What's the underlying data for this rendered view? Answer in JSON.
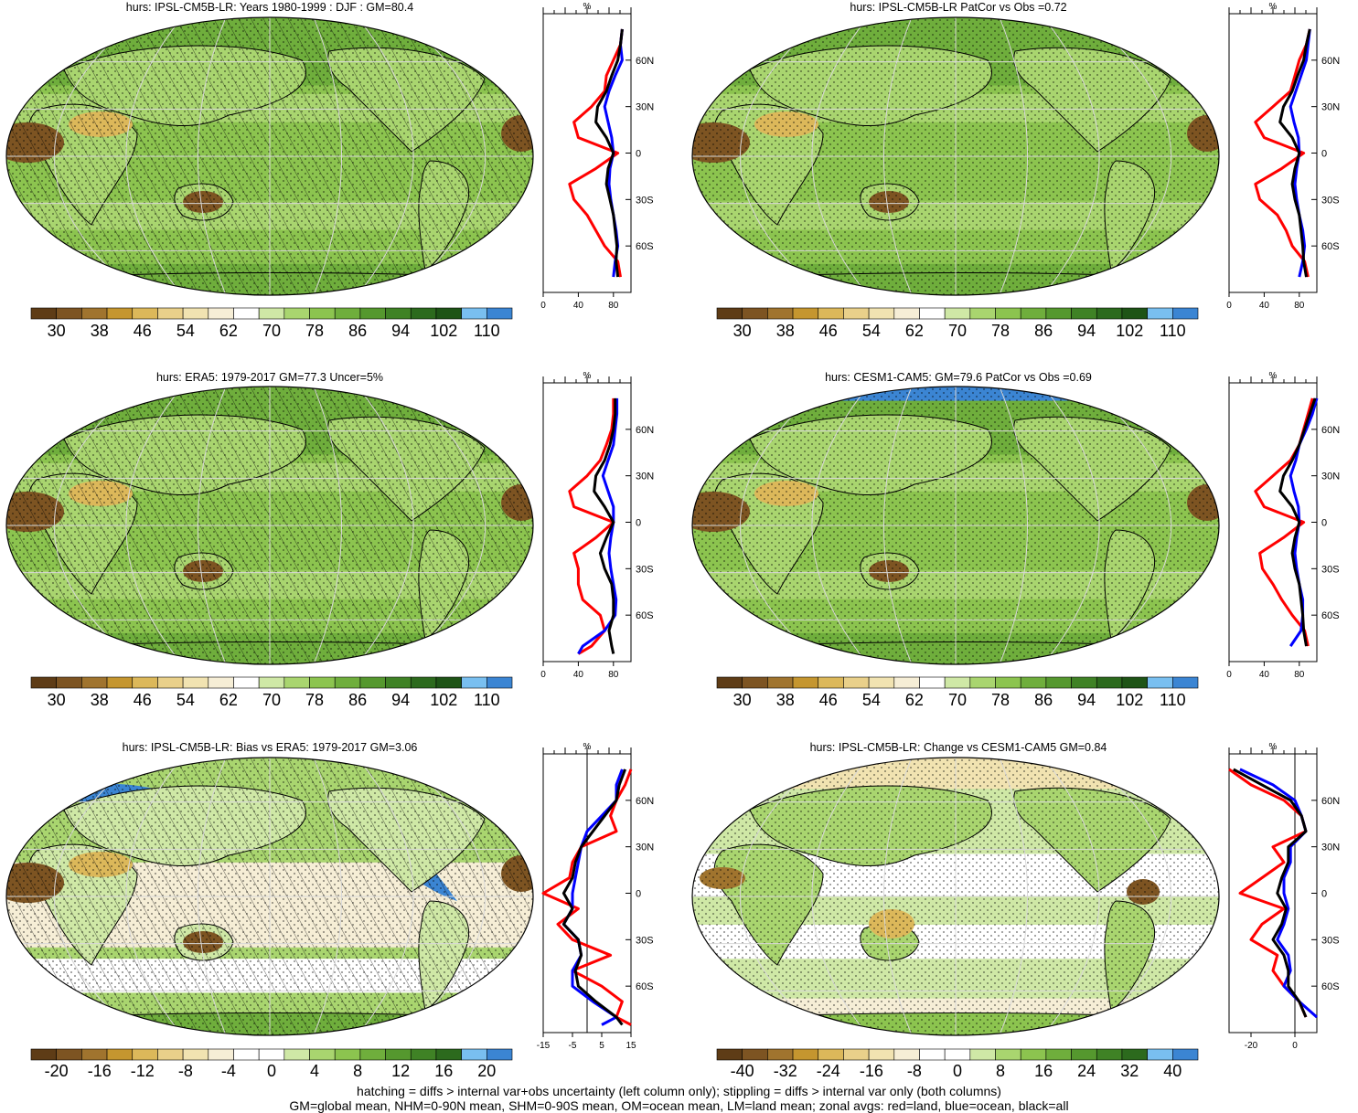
{
  "panels": [
    {
      "id": "p1",
      "title": "hurs: IPSL-CM5B-LR: Years 1980-1999 : DJF : GM=80.4",
      "cbar": "abs",
      "hatch": true,
      "zonal": "abs",
      "pos": "tl"
    },
    {
      "id": "p2",
      "title": "hurs: IPSL-CM5B-LR PatCor vs Obs =0.72",
      "cbar": "abs",
      "hatch": false,
      "zonal": "abs",
      "pos": "tr"
    },
    {
      "id": "p3",
      "title": "hurs: ERA5: 1979-2017 GM=77.3 Uncer=5%",
      "cbar": "abs",
      "hatch": true,
      "zonal": "abs",
      "pos": "ml"
    },
    {
      "id": "p4",
      "title": "hurs: CESM1-CAM5: GM=79.6 PatCor vs Obs =0.69",
      "cbar": "abs",
      "hatch": false,
      "zonal": "abs",
      "pos": "mr"
    },
    {
      "id": "p5",
      "title": "hurs: IPSL-CM5B-LR: Bias vs ERA5: 1979-2017 GM=3.06",
      "cbar": "bias",
      "hatch": true,
      "zonal": "bias",
      "pos": "bl"
    },
    {
      "id": "p6",
      "title": "hurs: IPSL-CM5B-LR: Change vs CESM1-CAM5 GM=0.84",
      "cbar": "change",
      "hatch": false,
      "zonal": "change",
      "pos": "br"
    }
  ],
  "colorbars": {
    "abs": {
      "labels": [
        "30",
        "38",
        "46",
        "54",
        "62",
        "70",
        "78",
        "86",
        "94",
        "102",
        "110"
      ],
      "colors": [
        "#5e3c16",
        "#7d5422",
        "#a0742e",
        "#c5962f",
        "#dcb85a",
        "#e9d08a",
        "#f1e3b1",
        "#f6eed6",
        "#ffffff",
        "#cfe8a6",
        "#a9d56f",
        "#8cc44f",
        "#6fae3c",
        "#55982e",
        "#3f8225",
        "#2c6a1d",
        "#1e5416",
        "#79bff0",
        "#3b85d3"
      ]
    },
    "bias": {
      "labels": [
        "-20",
        "-16",
        "-12",
        "-8",
        "-4",
        "0",
        "4",
        "8",
        "12",
        "16",
        "20"
      ],
      "colors": [
        "#5e3c16",
        "#7d5422",
        "#a0742e",
        "#c5962f",
        "#dcb85a",
        "#e9d08a",
        "#f1e3b1",
        "#f6eed6",
        "#ffffff",
        "#ffffff",
        "#cfe8a6",
        "#a9d56f",
        "#8cc44f",
        "#6fae3c",
        "#55982e",
        "#3f8225",
        "#2c6a1d",
        "#79bff0",
        "#3b85d3"
      ]
    },
    "change": {
      "labels": [
        "-40",
        "-32",
        "-24",
        "-16",
        "-8",
        "0",
        "8",
        "16",
        "24",
        "32",
        "40"
      ],
      "colors": [
        "#5e3c16",
        "#7d5422",
        "#a0742e",
        "#c5962f",
        "#dcb85a",
        "#e9d08a",
        "#f1e3b1",
        "#f6eed6",
        "#ffffff",
        "#ffffff",
        "#cfe8a6",
        "#a9d56f",
        "#8cc44f",
        "#6fae3c",
        "#55982e",
        "#3f8225",
        "#2c6a1d",
        "#79bff0",
        "#3b85d3"
      ]
    }
  },
  "zonal_axes": {
    "abs": {
      "unit": "%",
      "xticks": [
        "0",
        "40",
        "80"
      ],
      "xlim": [
        0,
        100
      ],
      "lat_labels": [
        "60N",
        "30N",
        "0",
        "30S",
        "60S"
      ]
    },
    "bias": {
      "unit": "%",
      "xticks": [
        "-15",
        "-5",
        "5",
        "15"
      ],
      "xlim": [
        -15,
        15
      ],
      "lat_labels": [
        "60N",
        "30N",
        "0",
        "30S",
        "60S"
      ]
    },
    "change": {
      "unit": "%",
      "xticks": [
        "-20",
        "0"
      ],
      "xlim": [
        -30,
        10
      ],
      "lat_labels": [
        "60N",
        "30N",
        "0",
        "30S",
        "60S"
      ]
    }
  },
  "chart_data": {
    "type": "line",
    "series_colors": {
      "land": "#ff0000",
      "ocean": "#0000ff",
      "all": "#000000"
    },
    "zonal_profiles": {
      "p1": {
        "lat": [
          -80,
          -70,
          -60,
          -50,
          -40,
          -30,
          -20,
          -10,
          0,
          10,
          20,
          30,
          40,
          50,
          60,
          70,
          80
        ],
        "land": [
          88,
          85,
          70,
          60,
          50,
          35,
          30,
          60,
          85,
          40,
          35,
          55,
          70,
          72,
          80,
          88,
          90
        ],
        "ocean": [
          80,
          82,
          85,
          83,
          80,
          77,
          75,
          76,
          80,
          78,
          74,
          70,
          75,
          82,
          90,
          88,
          90
        ],
        "all": [
          85,
          83,
          84,
          82,
          80,
          76,
          72,
          74,
          80,
          72,
          60,
          62,
          72,
          78,
          85,
          88,
          90
        ]
      },
      "p2": {
        "lat": [
          -80,
          -70,
          -60,
          -50,
          -40,
          -30,
          -20,
          -10,
          0,
          10,
          20,
          30,
          40,
          50,
          60,
          70,
          80
        ],
        "land": [
          90,
          86,
          72,
          65,
          55,
          35,
          30,
          60,
          85,
          40,
          30,
          50,
          70,
          75,
          80,
          88,
          92
        ],
        "ocean": [
          80,
          84,
          86,
          84,
          80,
          77,
          75,
          77,
          80,
          79,
          74,
          70,
          76,
          82,
          88,
          90,
          92
        ],
        "all": [
          88,
          85,
          84,
          82,
          80,
          75,
          72,
          75,
          80,
          72,
          58,
          62,
          72,
          78,
          85,
          88,
          92
        ]
      },
      "p3": {
        "lat": [
          -85,
          -80,
          -70,
          -60,
          -50,
          -40,
          -30,
          -20,
          -10,
          0,
          10,
          20,
          30,
          40,
          50,
          60,
          70,
          80
        ],
        "land": [
          40,
          55,
          70,
          65,
          45,
          40,
          40,
          35,
          60,
          80,
          35,
          30,
          50,
          65,
          72,
          78,
          80,
          80
        ],
        "ocean": [
          40,
          45,
          70,
          82,
          83,
          80,
          77,
          75,
          77,
          80,
          80,
          74,
          68,
          74,
          80,
          82,
          84,
          84
        ],
        "all": [
          80,
          78,
          75,
          80,
          80,
          78,
          70,
          65,
          72,
          80,
          70,
          58,
          60,
          70,
          76,
          80,
          82,
          82
        ]
      },
      "p4": {
        "lat": [
          -80,
          -70,
          -60,
          -50,
          -40,
          -30,
          -20,
          -10,
          0,
          10,
          20,
          30,
          40,
          50,
          60,
          70,
          80
        ],
        "land": [
          90,
          86,
          72,
          60,
          50,
          38,
          35,
          62,
          85,
          40,
          30,
          50,
          70,
          80,
          85,
          90,
          95
        ],
        "ocean": [
          70,
          82,
          84,
          84,
          80,
          77,
          75,
          77,
          80,
          79,
          74,
          70,
          76,
          80,
          88,
          95,
          100
        ],
        "all": [
          88,
          85,
          84,
          82,
          80,
          75,
          72,
          75,
          80,
          72,
          58,
          62,
          72,
          80,
          86,
          92,
          98
        ]
      },
      "p5": {
        "lat": [
          -85,
          -80,
          -70,
          -60,
          -50,
          -40,
          -30,
          -20,
          -10,
          0,
          10,
          20,
          30,
          40,
          50,
          60,
          70,
          80
        ],
        "land": [
          15,
          10,
          12,
          5,
          -5,
          8,
          -5,
          -10,
          -3,
          -15,
          -6,
          -5,
          -2,
          10,
          8,
          10,
          13,
          15
        ],
        "ocean": [
          5,
          10,
          2,
          -5,
          -5,
          -2,
          -3,
          -8,
          -5,
          -5,
          -4,
          -3,
          -2,
          0,
          5,
          10,
          10,
          12
        ],
        "all": [
          12,
          10,
          3,
          -3,
          -4,
          -2,
          -3,
          -8,
          -5,
          -8,
          -5,
          -4,
          -2,
          2,
          6,
          10,
          11,
          13
        ]
      },
      "p6": {
        "lat": [
          -80,
          -70,
          -60,
          -50,
          -40,
          -30,
          -20,
          -10,
          0,
          10,
          20,
          30,
          40,
          50,
          60,
          70,
          80
        ],
        "land": [
          5,
          2,
          -5,
          -10,
          -8,
          -20,
          -15,
          -5,
          -25,
          -15,
          -5,
          -10,
          5,
          3,
          -5,
          -20,
          -30
        ],
        "ocean": [
          10,
          2,
          -5,
          -2,
          -3,
          -8,
          -5,
          -3,
          -5,
          -5,
          -2,
          -2,
          5,
          3,
          0,
          -10,
          -25
        ],
        "all": [
          5,
          2,
          -3,
          -3,
          -5,
          -10,
          -6,
          -4,
          -8,
          -6,
          -3,
          -3,
          5,
          3,
          -2,
          -15,
          -28
        ]
      }
    }
  },
  "footer": {
    "line1": "hatching = diffs > internal var+obs uncertainty (left column only); stippling = diffs > internal var only (both columns)",
    "line2": "GM=global mean, NHM=0-90N mean, SHM=0-90S mean, OM=ocean mean, LM=land mean; zonal avgs: red=land, blue=ocean, black=all"
  }
}
